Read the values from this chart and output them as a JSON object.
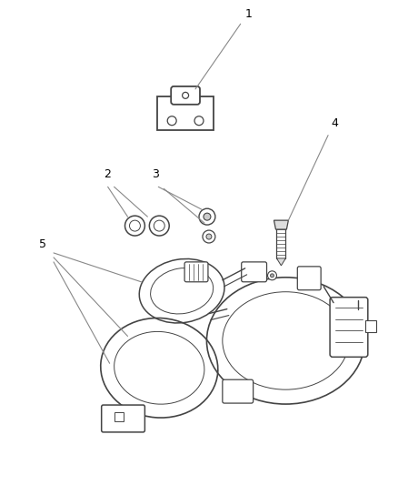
{
  "background_color": "#ffffff",
  "figsize": [
    4.38,
    5.33
  ],
  "dpi": 100,
  "line_color": "#444444",
  "light_line": "#888888",
  "label_fontsize": 9
}
